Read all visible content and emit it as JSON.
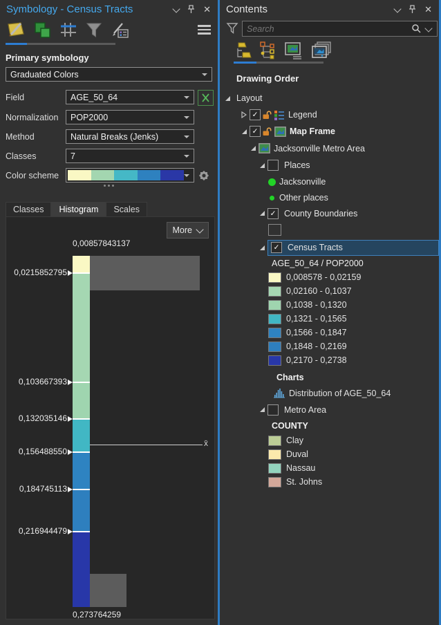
{
  "symbology": {
    "title": "Symbology - Census Tracts",
    "primary_heading": "Primary symbology",
    "symbology_type": "Graduated Colors",
    "form": {
      "rows": [
        {
          "label": "Field",
          "value": "AGE_50_64"
        },
        {
          "label": "Normalization",
          "value": "POP2000"
        },
        {
          "label": "Method",
          "value": "Natural Breaks (Jenks)"
        },
        {
          "label": "Classes",
          "value": "7"
        }
      ],
      "color_scheme_label": "Color scheme",
      "color_scheme_colors": [
        "#faf8c4",
        "#a3d6b0",
        "#45b8c6",
        "#2e81bf",
        "#2a37a6"
      ]
    },
    "tabs": {
      "items": [
        "Classes",
        "Histogram",
        "Scales"
      ],
      "active": "Histogram"
    },
    "histogram": {
      "more_label": "More",
      "max_label": "0,00857843137",
      "min_label": "0,273764259",
      "mean_label": "x̄",
      "break_labels": [
        "0,0215852795",
        "0,103667393",
        "0,132035146",
        "0,156488550",
        "0,184745113",
        "0,216944479"
      ],
      "segment_colors": [
        "#faf8c4",
        "#a5d7b2",
        "#9fd5af",
        "#41b7c4",
        "#2e83c1",
        "#2e7fbe",
        "#2837a8"
      ],
      "class_break_values": [
        0.00857843137,
        0.0215852795,
        0.103667393,
        0.132035146,
        0.15648855,
        0.184745113,
        0.216944479,
        0.273764259
      ]
    }
  },
  "contents": {
    "title": "Contents",
    "search_placeholder": "Search",
    "heading": "Drawing Order",
    "tree": [
      {
        "label": "Layout",
        "indent": 0,
        "exp": "open"
      },
      {
        "label": "Legend",
        "indent": 1,
        "exp": "closed",
        "check": true,
        "lock": true,
        "icon": "legend"
      },
      {
        "label": "Map Frame",
        "indent": 1,
        "exp": "open",
        "check": true,
        "lock": true,
        "icon": "mapframe",
        "bold": true
      },
      {
        "label": "Jacksonville Metro Area",
        "indent": 2,
        "exp": "open",
        "icon": "mapframe"
      },
      {
        "label": "Places",
        "indent": 3,
        "exp": "open",
        "check": false
      },
      {
        "label": "Jacksonville",
        "indent": 4,
        "icon": "dot-large"
      },
      {
        "label": "Other places",
        "indent": 4,
        "icon": "dot-small"
      },
      {
        "label": "County Boundaries",
        "indent": 3,
        "exp": "open",
        "check": true
      },
      {
        "label": "",
        "indent": 4,
        "icon": "outline"
      },
      {
        "label": "Census Tracts",
        "indent": 3,
        "exp": "open",
        "check": true,
        "selected": true
      },
      {
        "label": "AGE_50_64 / POP2000",
        "indent": 4,
        "semibold": true
      },
      {
        "label": "0,008578 - 0,02159",
        "indent": 4,
        "swatch": "#faf8c4"
      },
      {
        "label": "0,02160 - 0,1037",
        "indent": 4,
        "swatch": "#a5d7b2"
      },
      {
        "label": "0,1038 - 0,1320",
        "indent": 4,
        "swatch": "#9fd5af"
      },
      {
        "label": "0,1321 - 0,1565",
        "indent": 4,
        "swatch": "#41b7c4"
      },
      {
        "label": "0,1566 - 0,1847",
        "indent": 4,
        "swatch": "#2e83c1"
      },
      {
        "label": "0,1848 - 0,2169",
        "indent": 4,
        "swatch": "#2e7fbe"
      },
      {
        "label": "0,2170 - 0,2738",
        "indent": 4,
        "swatch": "#2837a8"
      },
      {
        "label": "Charts",
        "indent": 5,
        "bold": true
      },
      {
        "label": "Distribution of AGE_50_64",
        "indent": 5,
        "icon": "chart"
      },
      {
        "label": "Metro Area",
        "indent": 3,
        "exp": "open",
        "check": false
      },
      {
        "label": "COUNTY",
        "indent": 4,
        "bold": true
      },
      {
        "label": "Clay",
        "indent": 4,
        "swatch": "#bccd96"
      },
      {
        "label": "Duval",
        "indent": 4,
        "swatch": "#fbe9ac"
      },
      {
        "label": "Nassau",
        "indent": 4,
        "swatch": "#93d4be"
      },
      {
        "label": "St. Johns",
        "indent": 4,
        "swatch": "#d3a89a"
      }
    ]
  }
}
